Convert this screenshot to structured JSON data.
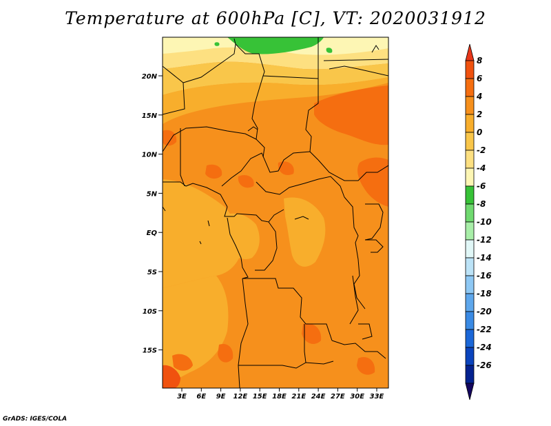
{
  "title": "Temperature at 600hPa [C], VT: 2020031912",
  "credit": "GrADS: IGES/COLA",
  "map": {
    "lat_labels": [
      "20N",
      "15N",
      "10N",
      "5N",
      "EQ",
      "5S",
      "10S",
      "15S"
    ],
    "lon_labels": [
      "3E",
      "6E",
      "9E",
      "12E",
      "15E",
      "18E",
      "21E",
      "24E",
      "27E",
      "30E",
      "33E"
    ]
  },
  "colorbar": {
    "levels": [
      "8",
      "6",
      "4",
      "2",
      "0",
      "-2",
      "-4",
      "-6",
      "-8",
      "-10",
      "-12",
      "-14",
      "-16",
      "-18",
      "-20",
      "-22",
      "-24",
      "-26"
    ],
    "colors_top_to_bottom": [
      "#e8371a",
      "#f0520f",
      "#f56e10",
      "#f6901c",
      "#f8ae2c",
      "#f9c64a",
      "#fde081",
      "#fdf6b4",
      "#37c237",
      "#6fd96f",
      "#a8eea8",
      "#e1f7f7",
      "#bce3f7",
      "#8ec8f4",
      "#5ea7ec",
      "#3a8ae4",
      "#1b67d8",
      "#0b44bd",
      "#042290",
      "#14065e"
    ]
  }
}
